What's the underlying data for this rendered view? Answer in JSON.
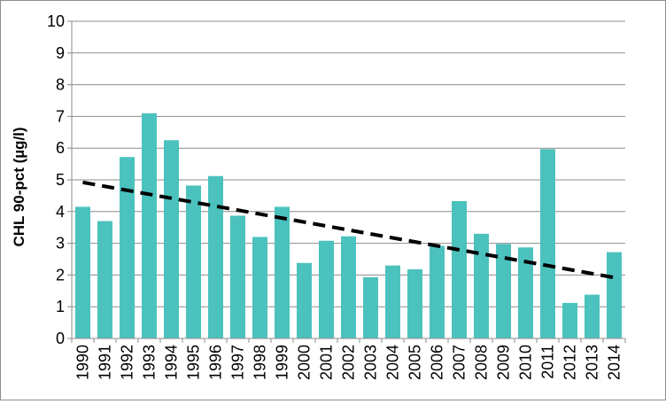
{
  "chart_data": {
    "type": "bar",
    "categories": [
      "1990",
      "1991",
      "1992",
      "1993",
      "1994",
      "1995",
      "1996",
      "1997",
      "1998",
      "1999",
      "2000",
      "2001",
      "2002",
      "2003",
      "2004",
      "2005",
      "2006",
      "2007",
      "2008",
      "2009",
      "2010",
      "2011",
      "2012",
      "2013",
      "2014"
    ],
    "series": [
      {
        "values": [
          4.15,
          3.7,
          5.72,
          7.1,
          6.25,
          4.82,
          5.12,
          3.87,
          3.2,
          4.15,
          2.38,
          3.08,
          3.22,
          1.93,
          2.3,
          2.18,
          2.92,
          4.33,
          3.3,
          2.98,
          2.87,
          5.97,
          1.12,
          1.38,
          2.72
        ],
        "color": "#4bc2be"
      }
    ],
    "trendline": {
      "type": "linear",
      "start": 4.92,
      "end": 1.92,
      "color": "#000000",
      "style": "dashed"
    },
    "title": "",
    "xlabel": "",
    "ylabel": "CHL 90-pct (µg/l)",
    "ylim": [
      0,
      10
    ],
    "yticks": [
      "0",
      "1",
      "2",
      "3",
      "4",
      "5",
      "6",
      "7",
      "8",
      "9",
      "10"
    ],
    "grid": true,
    "legend": "none"
  }
}
